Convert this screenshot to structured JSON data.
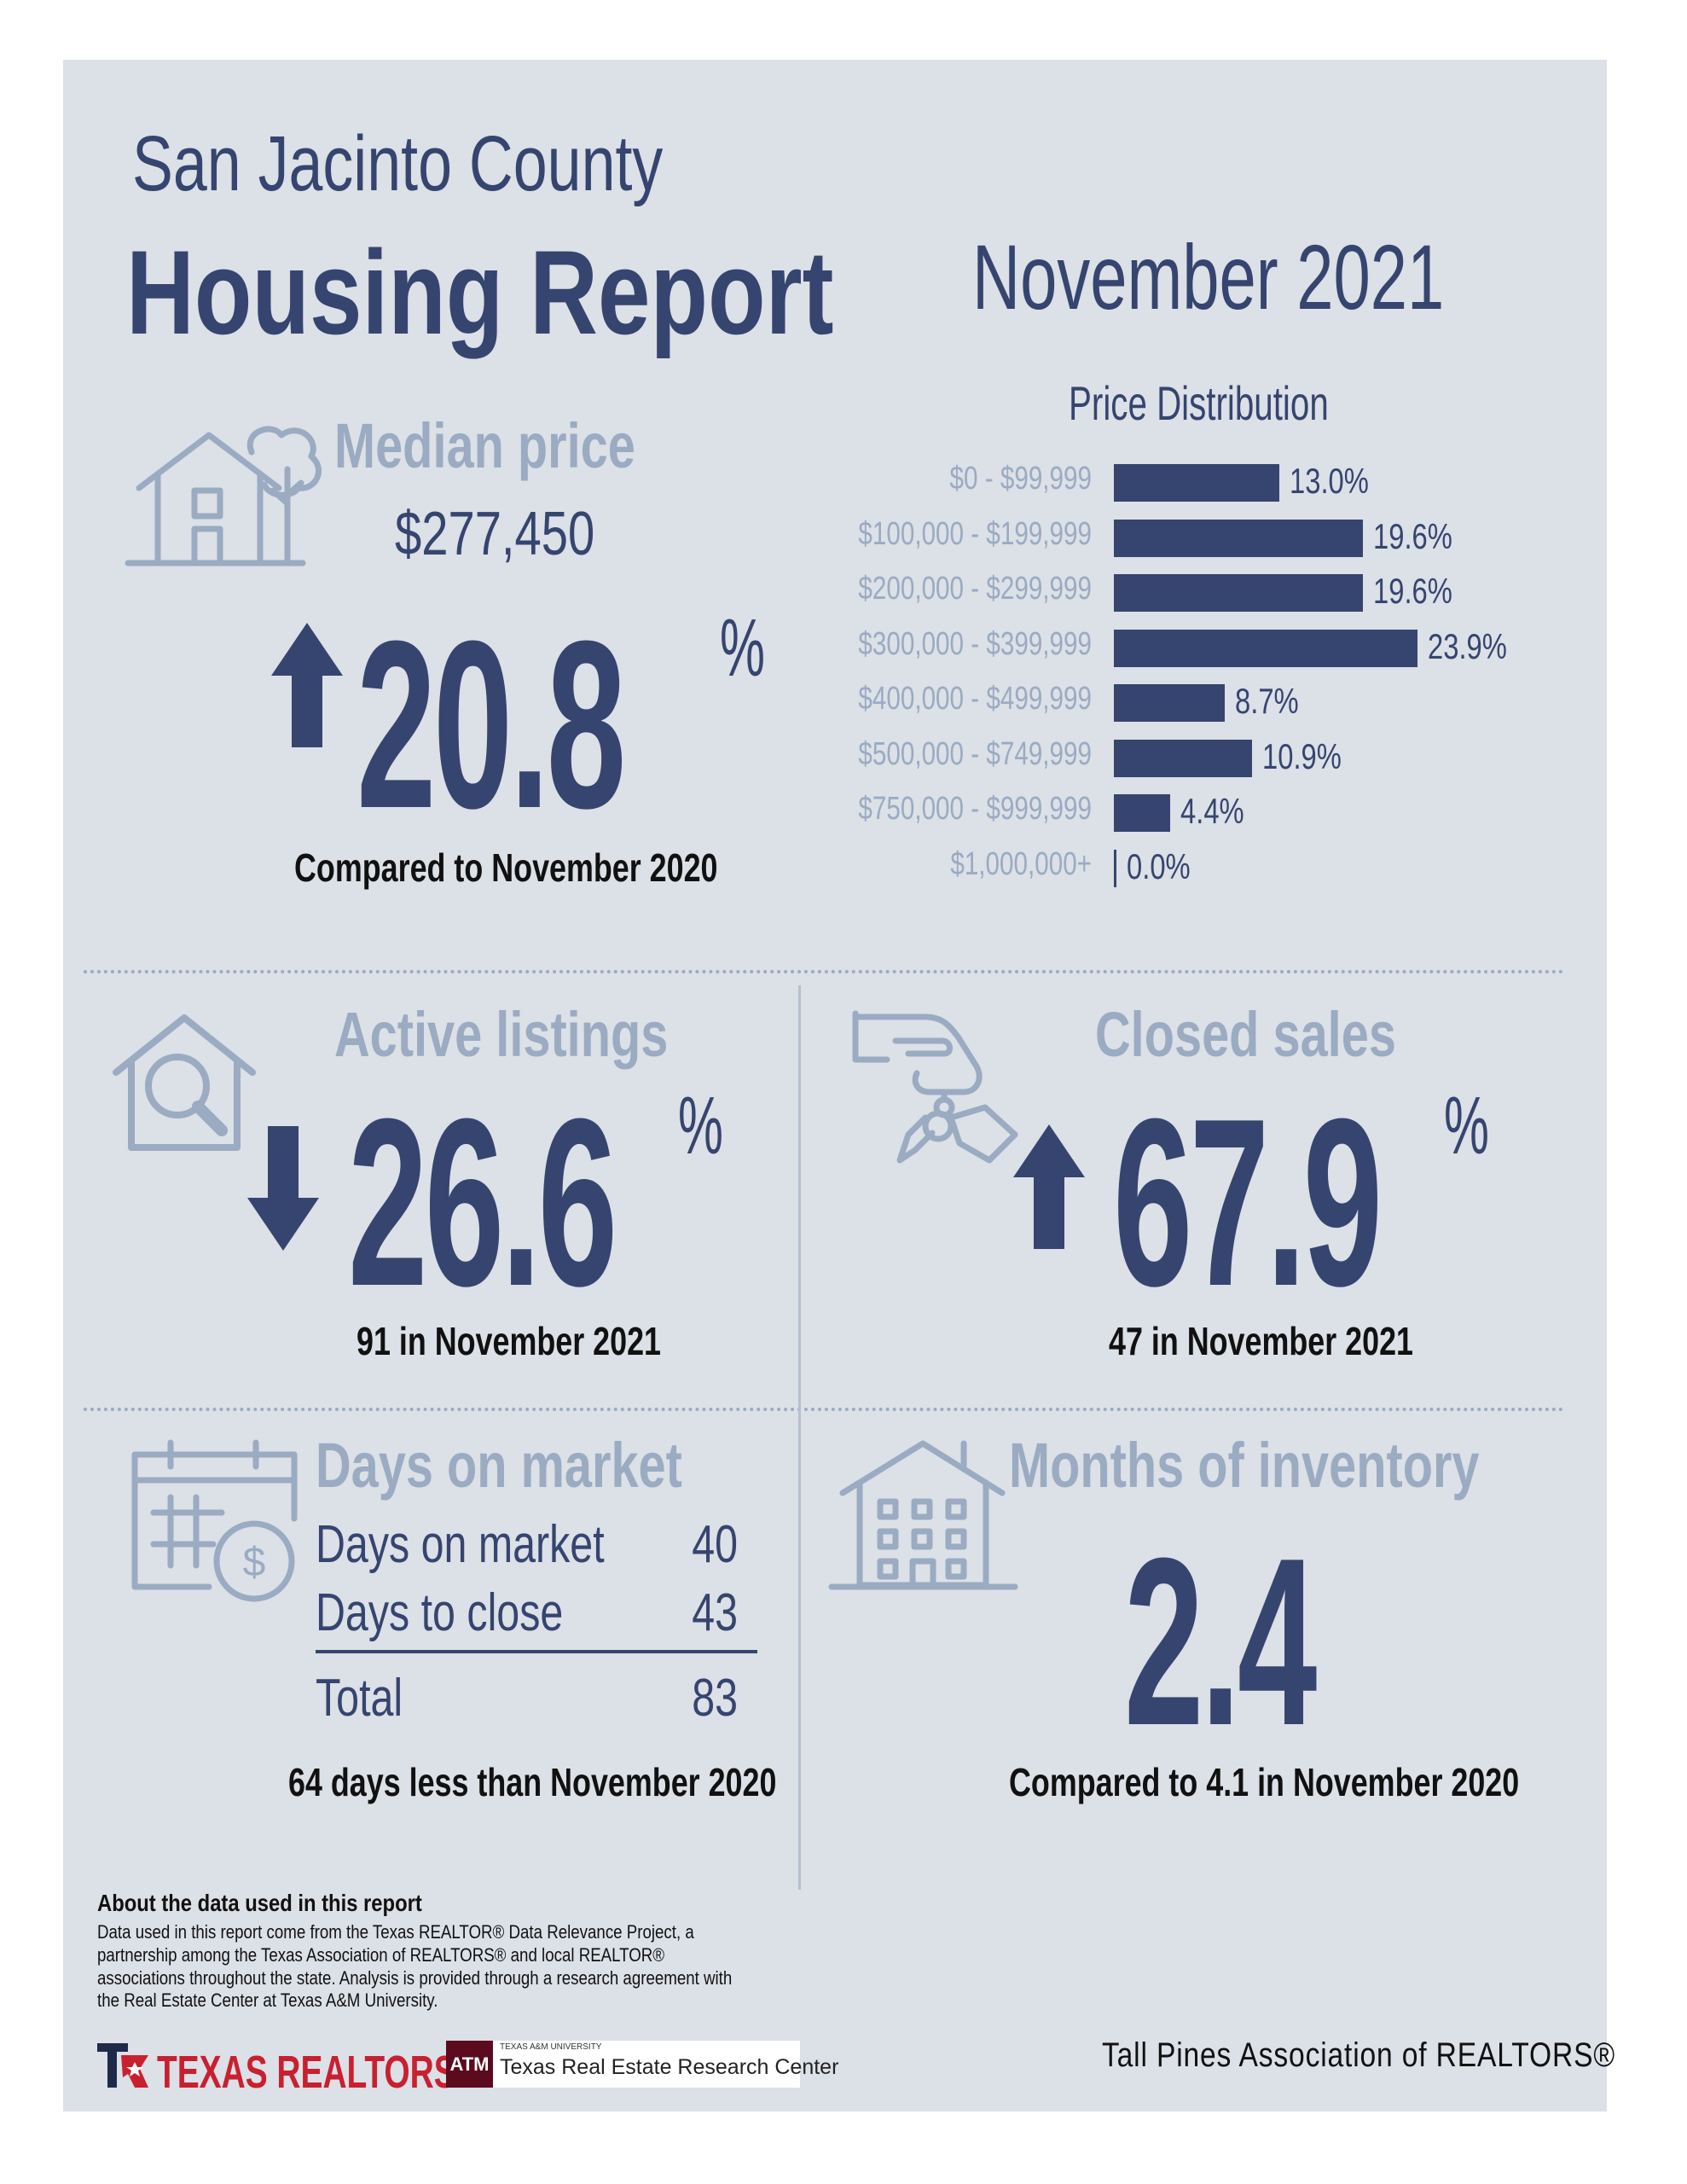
{
  "header": {
    "county": "San Jacinto County",
    "report_title": "Housing Report",
    "period": "November 2021"
  },
  "median_price": {
    "title": "Median price",
    "value": "$277,450",
    "change_direction": "up",
    "change_value": "20.8",
    "change_unit": "%",
    "caption": "Compared to November 2020"
  },
  "chart_data": {
    "type": "bar",
    "orientation": "horizontal",
    "title": "Price Distribution",
    "categories": [
      "$0 - $99,999",
      "$100,000 - $199,999",
      "$200,000 - $299,999",
      "$300,000 - $399,999",
      "$400,000 - $499,999",
      "$500,000 - $749,999",
      "$750,000 - $999,999",
      "$1,000,000+"
    ],
    "values": [
      13.0,
      19.6,
      19.6,
      23.9,
      8.7,
      10.9,
      4.4,
      0.0
    ],
    "value_labels": [
      "13.0%",
      "19.6%",
      "19.6%",
      "23.9%",
      "8.7%",
      "10.9%",
      "4.4%",
      "0.0%"
    ],
    "xlim": [
      0,
      23.9
    ],
    "grid": false,
    "color": "#36456f"
  },
  "active_listings": {
    "title": "Active listings",
    "change_direction": "down",
    "change_value": "26.6",
    "change_unit": "%",
    "caption": "91 in November 2021"
  },
  "closed_sales": {
    "title": "Closed sales",
    "change_direction": "up",
    "change_value": "67.9",
    "change_unit": "%",
    "caption": "47 in November 2021"
  },
  "days_on_market": {
    "title": "Days on market",
    "rows": [
      {
        "label": "Days on market",
        "value": "40"
      },
      {
        "label": "Days to close",
        "value": "43"
      }
    ],
    "total_label": "Total",
    "total_value": "83",
    "caption": "64 days less than November 2020"
  },
  "months_inventory": {
    "title": "Months of inventory",
    "value": "2.4",
    "caption": "Compared to 4.1 in November 2020"
  },
  "about": {
    "heading": "About the data used in this report",
    "body": "Data used in this report come from the Texas REALTOR® Data Relevance Project, a partnership among the Texas Association of REALTORS® and local REALTOR® associations throughout the state. Analysis is provided through a research agreement with the Real Estate Center at Texas A&M University."
  },
  "footer": {
    "texas_realtors": "TEXAS REALTORS",
    "tamu_small": "TEXAS A&M UNIVERSITY",
    "tamu_name": "Texas Real Estate Research Center",
    "tamu_seal": "ATM",
    "association": "Tall Pines Association of REALTORS®"
  },
  "colors": {
    "navy": "#36456f",
    "muted": "#9aabc2",
    "panel": "#dce0e7",
    "brand_red": "#c8202f",
    "tamu_maroon": "#5c0a1d"
  },
  "icons": [
    "house-tree-icon",
    "up-arrow-icon",
    "house-search-icon",
    "down-arrow-icon",
    "hand-keys-icon",
    "calendar-dollar-icon",
    "building-icon",
    "texas-realtors-logo"
  ]
}
